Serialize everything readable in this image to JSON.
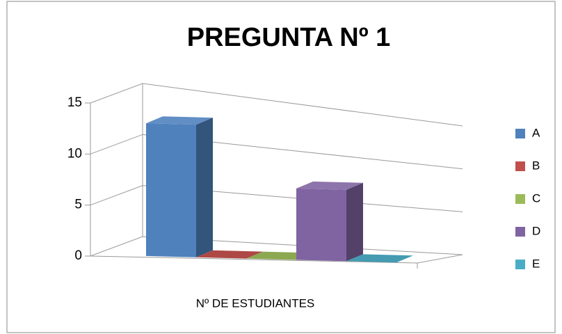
{
  "chart_data": {
    "type": "bar3d",
    "title": "PREGUNTA Nº 1",
    "categories": [
      "Nº DE ESTUDIANTES"
    ],
    "series": [
      {
        "name": "A",
        "color": "#4f81bd",
        "values": [
          13
        ]
      },
      {
        "name": "B",
        "color": "#c0504d",
        "values": [
          0
        ]
      },
      {
        "name": "C",
        "color": "#9bbb59",
        "values": [
          0
        ]
      },
      {
        "name": "D",
        "color": "#8064a2",
        "values": [
          7
        ]
      },
      {
        "name": "E",
        "color": "#4bacc6",
        "values": [
          0
        ]
      }
    ],
    "ylim": [
      0,
      15
    ],
    "yticks": [
      0,
      5,
      10,
      15
    ],
    "grid": true,
    "legend": "right"
  }
}
